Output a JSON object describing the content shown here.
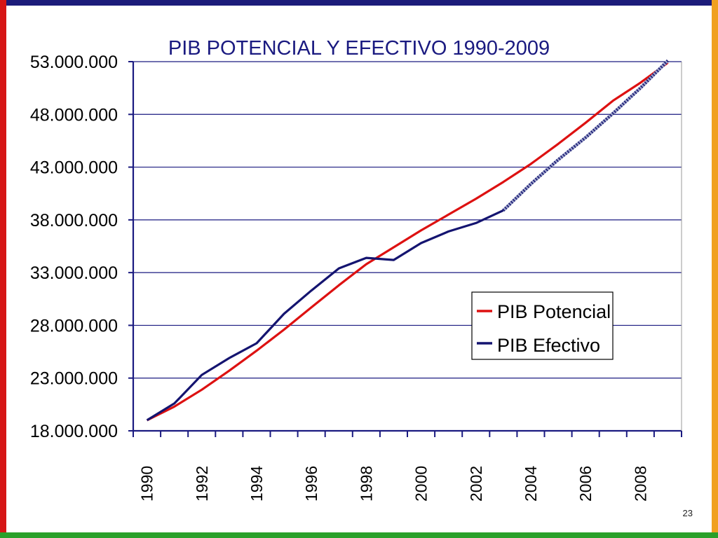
{
  "slide": {
    "page_number": "23"
  },
  "colors": {
    "border_top": "#1c1c7a",
    "border_left": "#d61616",
    "border_right": "#f0a020",
    "border_bottom": "#2aa02a",
    "axis": "#1a1a80",
    "grid": "#1a1a80"
  },
  "chart_data": {
    "type": "line",
    "title": "PIB POTENCIAL Y EFECTIVO 1990-2009",
    "xlabel": "",
    "ylabel": "",
    "x": [
      1990,
      1991,
      1992,
      1993,
      1994,
      1995,
      1996,
      1997,
      1998,
      1999,
      2000,
      2001,
      2002,
      2003,
      2004,
      2005,
      2006,
      2007,
      2008,
      2009
    ],
    "xtick_labels": [
      "1990",
      "1992",
      "1994",
      "1996",
      "1998",
      "2000",
      "2002",
      "2004",
      "2006",
      "2008"
    ],
    "ylim": [
      18000000,
      53000000
    ],
    "yticks": [
      18000000,
      23000000,
      28000000,
      33000000,
      38000000,
      43000000,
      48000000,
      53000000
    ],
    "ytick_labels": [
      "18.000.000",
      "23.000.000",
      "28.000.000",
      "33.000.000",
      "38.000.000",
      "43.000.000",
      "48.000.000",
      "53.000.000"
    ],
    "grid": true,
    "legend_position": "right",
    "series": [
      {
        "name": "PIB Potencial",
        "color": "#dd1111",
        "values": [
          19000000,
          20300000,
          21900000,
          23700000,
          25600000,
          27600000,
          29700000,
          31800000,
          33800000,
          35400000,
          37000000,
          38500000,
          40000000,
          41600000,
          43300000,
          45200000,
          47200000,
          49300000,
          51000000,
          52900000
        ]
      },
      {
        "name": "PIB Efectivo",
        "color": "#141470",
        "forecast_from_index": 13,
        "values": [
          19000000,
          20600000,
          23300000,
          24900000,
          26300000,
          29100000,
          31300000,
          33400000,
          34400000,
          34200000,
          35800000,
          36900000,
          37700000,
          38900000,
          41400000,
          43700000,
          45800000,
          48100000,
          50500000,
          53100000
        ]
      }
    ]
  }
}
